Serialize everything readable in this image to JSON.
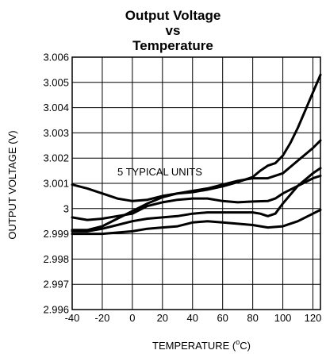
{
  "chart_data": {
    "type": "line",
    "title_lines": [
      "Output Voltage",
      "vs",
      "Temperature"
    ],
    "xlabel": "TEMPERATURE (",
    "xlabel_unit_degree": "o",
    "xlabel_unit_tail": "C)",
    "ylabel": "OUTPUT VOLTAGE (V)",
    "xlim": [
      -40,
      125
    ],
    "ylim": [
      2.996,
      3.006
    ],
    "x_ticks": [
      -40,
      -20,
      0,
      20,
      40,
      60,
      80,
      100,
      120
    ],
    "x_tick_labels": [
      "-40",
      "-20",
      "0",
      "20",
      "40",
      "60",
      "80",
      "100",
      "120"
    ],
    "y_ticks": [
      2.996,
      2.997,
      2.998,
      2.999,
      3,
      3.001,
      3.002,
      3.003,
      3.004,
      3.005,
      3.006
    ],
    "y_tick_labels": [
      "2.996",
      "2.997",
      "2.998",
      "2.999",
      "3",
      "3.001",
      "3.002",
      "3.003",
      "3.004",
      "3.005",
      "3.006"
    ],
    "grid": true,
    "annotation": "5 TYPICAL UNITS",
    "series": [
      {
        "x": [
          -40,
          -30,
          -20,
          -10,
          0,
          10,
          20,
          30,
          40,
          50,
          60,
          70,
          80,
          85,
          90,
          95,
          100,
          105,
          110,
          115,
          120,
          125
        ],
        "y": [
          3.00095,
          3.0008,
          3.0006,
          3.0004,
          3.0003,
          3.00035,
          3.0005,
          3.0006,
          3.00065,
          3.00075,
          3.00088,
          3.00105,
          3.00125,
          3.0015,
          3.0017,
          3.0018,
          3.0021,
          3.0026,
          3.0032,
          3.0039,
          3.0046,
          3.0053
        ]
      },
      {
        "x": [
          -40,
          -30,
          -20,
          -10,
          0,
          10,
          20,
          30,
          40,
          50,
          60,
          70,
          80,
          90,
          100,
          110,
          120,
          125
        ],
        "y": [
          2.99915,
          2.99915,
          2.9993,
          2.9996,
          2.9999,
          3.0002,
          3.00045,
          3.0006,
          3.0007,
          3.0008,
          3.00095,
          3.0011,
          3.0012,
          3.0012,
          3.0014,
          3.0019,
          3.0024,
          3.0027
        ]
      },
      {
        "x": [
          -40,
          -30,
          -20,
          -10,
          0,
          10,
          20,
          30,
          40,
          50,
          60,
          70,
          80,
          90,
          95,
          100,
          110,
          120,
          125
        ],
        "y": [
          2.99965,
          2.99955,
          2.9996,
          2.9997,
          2.9998,
          3.0001,
          3.00025,
          3.00035,
          3.0004,
          3.0004,
          3.0003,
          3.00025,
          3.00028,
          3.0003,
          3.0004,
          3.0006,
          3.0009,
          3.0012,
          3.0013
        ]
      },
      {
        "x": [
          -40,
          -30,
          -20,
          -10,
          0,
          10,
          20,
          30,
          40,
          50,
          60,
          70,
          80,
          85,
          90,
          95,
          100,
          110,
          120,
          125
        ],
        "y": [
          2.9991,
          2.9991,
          2.9992,
          2.99935,
          2.9995,
          2.9996,
          2.99965,
          2.9997,
          2.9998,
          2.99985,
          2.99985,
          2.99985,
          2.99985,
          2.9998,
          2.9997,
          2.9998,
          3.0002,
          3.0009,
          3.0014,
          3.0016
        ]
      },
      {
        "x": [
          -40,
          -30,
          -20,
          -10,
          0,
          10,
          20,
          30,
          40,
          50,
          60,
          70,
          80,
          90,
          100,
          110,
          120,
          125
        ],
        "y": [
          2.999,
          2.999,
          2.999,
          2.99905,
          2.9991,
          2.9992,
          2.99925,
          2.9993,
          2.99945,
          2.9995,
          2.99945,
          2.9994,
          2.99935,
          2.99925,
          2.9993,
          2.9995,
          2.9998,
          2.99995
        ]
      }
    ]
  }
}
